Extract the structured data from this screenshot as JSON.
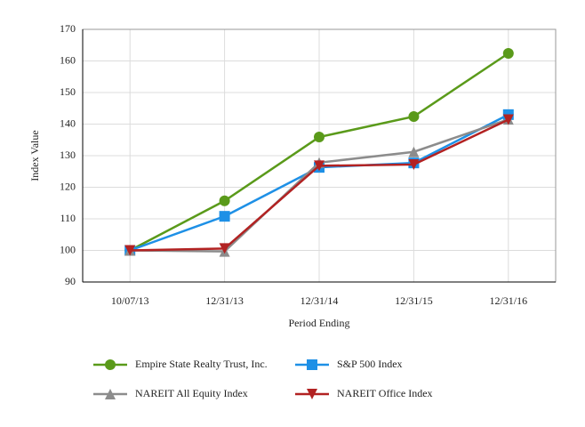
{
  "chart_data": {
    "type": "line",
    "x_label": "Period Ending",
    "y_label": "Index Value",
    "categories": [
      "10/07/13",
      "12/31/13",
      "12/31/14",
      "12/31/15",
      "12/31/16"
    ],
    "series": [
      {
        "name": "Empire State Realty Trust, Inc.",
        "color": "#5a9a1a",
        "marker": "circle",
        "values": [
          100,
          115.7,
          135.9,
          142.4,
          162.4
        ]
      },
      {
        "name": "S&P 500 Index",
        "color": "#1e90e6",
        "marker": "square",
        "values": [
          100,
          110.8,
          126.3,
          127.7,
          143.0
        ]
      },
      {
        "name": "NAREIT All Equity Index",
        "color": "#8c8c8c",
        "marker": "triangle-up",
        "values": [
          100,
          99.7,
          127.8,
          131.2,
          141.5
        ]
      },
      {
        "name": "NAREIT Office Index",
        "color": "#b22222",
        "marker": "triangle-down",
        "values": [
          100,
          100.6,
          126.8,
          127.2,
          141.4
        ]
      }
    ],
    "ylim": [
      90,
      170
    ],
    "yticks": [
      90,
      100,
      110,
      120,
      130,
      140,
      150,
      160,
      170
    ],
    "grid": true
  }
}
